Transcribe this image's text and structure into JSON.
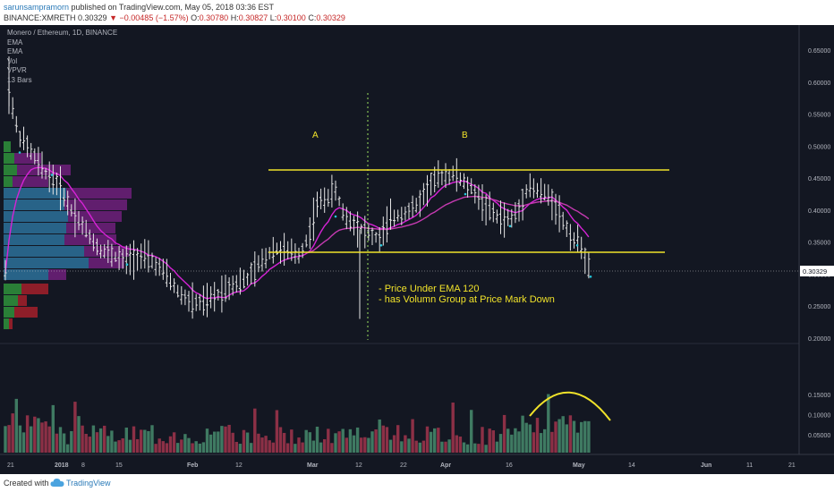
{
  "header": {
    "author": "sarunsampramorn",
    "published": "published on TradingView.com, May 05, 2018 03:36 EST",
    "symbol": "BINANCE:XMRETH",
    "last": "0.30329",
    "arrow": "▼",
    "change": "−0.00485 (−1.57%)",
    "o_label": "O:",
    "o": "0.30780",
    "h_label": "H:",
    "h": "0.30827",
    "l_label": "L:",
    "l": "0.30100",
    "c_label": "C:",
    "c": "0.30329"
  },
  "legend": {
    "title": "Monero / Ethereum, 1D, BINANCE",
    "items": [
      "EMA",
      "EMA",
      "Vol",
      "VPVR",
      "13 Bars"
    ]
  },
  "price_axis": {
    "ticks": [
      "0.65000",
      "0.60000",
      "0.55000",
      "0.50000",
      "0.45000",
      "0.40000",
      "0.35000",
      "0.30000",
      "0.25000",
      "0.20000"
    ],
    "tick_values": [
      0.65,
      0.6,
      0.55,
      0.5,
      0.45,
      0.4,
      0.35,
      0.3,
      0.25,
      0.2
    ],
    "current_label": "0.30329",
    "current_value": 0.30329
  },
  "volume_axis": {
    "ticks": [
      "0.15000",
      "0.10000",
      "0.05000"
    ],
    "tick_values": [
      0.15,
      0.1,
      0.05
    ]
  },
  "time_axis": {
    "ticks": [
      "21",
      "2018",
      "8",
      "15",
      "Feb",
      "12",
      "Mar",
      "12",
      "22",
      "Apr",
      "16",
      "May",
      "14",
      "Jun",
      "11",
      "21"
    ],
    "bold_ticks": [
      "2018",
      "Feb",
      "Mar",
      "Apr",
      "May",
      "Jun"
    ]
  },
  "annotations": {
    "label_a": "A",
    "label_b": "B",
    "note_line1": "- Price Under EMA 120",
    "note_line2": "- has Volumn Group at Price Mark Down"
  },
  "colors": {
    "background": "#131722",
    "candle": "#e6e6e6",
    "ema": "#d623d6",
    "ema_slow": "#c43ab0",
    "annotation": "#f0e22a",
    "vol_up": "#3f7a62",
    "vol_down": "#8c3046",
    "vpvr_blue": "#2b6b93",
    "vpvr_purple": "#6a1f77",
    "vpvr_green": "#2e8b3a",
    "vpvr_red": "#9c1f2a",
    "marker": "#26c6da"
  },
  "footer": {
    "created_with": "Created with",
    "brand": "TradingView"
  }
}
